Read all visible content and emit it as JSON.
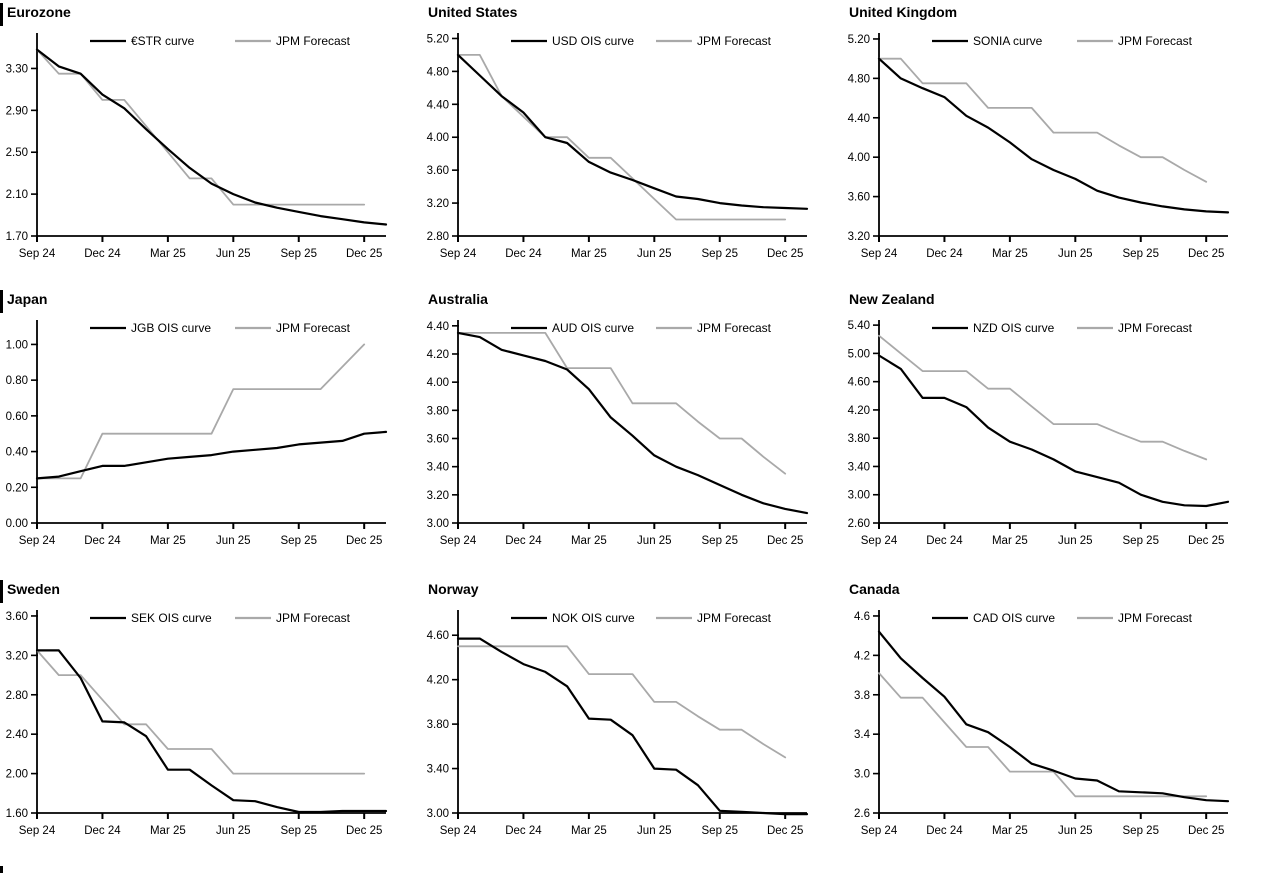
{
  "page": {
    "background": "#ffffff"
  },
  "colors": {
    "curve": "#000000",
    "forecast": "#a9a9a9",
    "axis": "#000000",
    "section_bar": "#000000"
  },
  "x_ticks": [
    "Sep 24",
    "Dec 24",
    "Mar 25",
    "Jun 25",
    "Sep 25",
    "Dec 25"
  ],
  "chart_data": [
    {
      "type": "line",
      "title": "Eurozone",
      "left_bar": true,
      "ylim": [
        1.7,
        3.61
      ],
      "months_span": 16,
      "y_ticks": [
        "3.30",
        "2.90",
        "2.50",
        "2.10",
        "1.70"
      ],
      "x_ticks": [
        "Sep 24",
        "Dec 24",
        "Mar 25",
        "Jun 25",
        "Sep 25",
        "Dec 25"
      ],
      "x_tick_months": [
        0,
        3,
        6,
        9,
        12,
        15
      ],
      "legend": [
        {
          "label": "€STR curve",
          "color_key": "curve"
        },
        {
          "label": "JPM Forecast",
          "color_key": "forecast"
        }
      ],
      "series": [
        {
          "name": "€STR curve",
          "role": "market",
          "values": [
            3.48,
            3.32,
            3.25,
            3.05,
            2.92,
            2.72,
            2.53,
            2.35,
            2.2,
            2.1,
            2.02,
            1.97,
            1.93,
            1.89,
            1.86,
            1.83,
            1.81
          ]
        },
        {
          "name": "JPM Forecast",
          "role": "forecast",
          "values": [
            3.48,
            3.25,
            3.25,
            3.0,
            3.0,
            2.75,
            2.5,
            2.25,
            2.25,
            2.0,
            2.0,
            2.0,
            2.0,
            2.0,
            2.0,
            2.0
          ]
        }
      ]
    },
    {
      "type": "line",
      "title": "United States",
      "left_bar": false,
      "ylim": [
        2.8,
        5.23
      ],
      "months_span": 16,
      "y_ticks": [
        "5.20",
        "4.80",
        "4.40",
        "4.00",
        "3.60",
        "3.20",
        "2.80"
      ],
      "x_ticks": [
        "Sep 24",
        "Dec 24",
        "Mar 25",
        "Jun 25",
        "Sep 25",
        "Dec 25"
      ],
      "x_tick_months": [
        0,
        3,
        6,
        9,
        12,
        15
      ],
      "legend": [
        {
          "label": "USD OIS curve",
          "color_key": "curve"
        },
        {
          "label": "JPM Forecast",
          "color_key": "forecast"
        }
      ],
      "series": [
        {
          "name": "USD OIS curve",
          "role": "market",
          "values": [
            5.0,
            4.75,
            4.5,
            4.3,
            4.0,
            3.93,
            3.7,
            3.57,
            3.48,
            3.38,
            3.28,
            3.25,
            3.2,
            3.17,
            3.15,
            3.14,
            3.13
          ]
        },
        {
          "name": "JPM Forecast",
          "role": "forecast",
          "values": [
            5.0,
            5.0,
            4.5,
            4.25,
            4.0,
            4.0,
            3.75,
            3.75,
            3.5,
            3.25,
            3.0,
            3.0,
            3.0,
            3.0,
            3.0,
            3.0
          ]
        }
      ]
    },
    {
      "type": "line",
      "title": "United Kingdom",
      "left_bar": false,
      "ylim": [
        3.2,
        5.23
      ],
      "months_span": 16,
      "y_ticks": [
        "5.20",
        "4.80",
        "4.40",
        "4.00",
        "3.60",
        "3.20"
      ],
      "x_ticks": [
        "Sep 24",
        "Dec 24",
        "Mar 25",
        "Jun 25",
        "Sep 25",
        "Dec 25"
      ],
      "x_tick_months": [
        0,
        3,
        6,
        9,
        12,
        15
      ],
      "legend": [
        {
          "label": "SONIA curve",
          "color_key": "curve"
        },
        {
          "label": "JPM Forecast",
          "color_key": "forecast"
        }
      ],
      "series": [
        {
          "name": "SONIA curve",
          "role": "market",
          "values": [
            5.0,
            4.8,
            4.7,
            4.61,
            4.42,
            4.3,
            4.15,
            3.98,
            3.87,
            3.78,
            3.66,
            3.59,
            3.54,
            3.5,
            3.47,
            3.45,
            3.44
          ]
        },
        {
          "name": "JPM Forecast",
          "role": "forecast",
          "values": [
            5.0,
            5.0,
            4.75,
            4.75,
            4.75,
            4.5,
            4.5,
            4.5,
            4.25,
            4.25,
            4.25,
            4.12,
            4.0,
            4.0,
            3.87,
            3.75
          ]
        }
      ]
    },
    {
      "type": "line",
      "title": "Japan",
      "left_bar": true,
      "ylim": [
        0.0,
        1.12
      ],
      "months_span": 16,
      "y_ticks": [
        "1.00",
        "0.80",
        "0.60",
        "0.40",
        "0.20",
        "0.00"
      ],
      "x_ticks": [
        "Sep 24",
        "Dec 24",
        "Mar 25",
        "Jun 25",
        "Sep 25",
        "Dec 25"
      ],
      "x_tick_months": [
        0,
        3,
        6,
        9,
        12,
        15
      ],
      "legend": [
        {
          "label": "JGB OIS curve",
          "color_key": "curve"
        },
        {
          "label": "JPM Forecast",
          "color_key": "forecast"
        }
      ],
      "series": [
        {
          "name": "JGB OIS curve",
          "role": "market",
          "values": [
            0.25,
            0.26,
            0.29,
            0.32,
            0.32,
            0.34,
            0.36,
            0.37,
            0.38,
            0.4,
            0.41,
            0.42,
            0.44,
            0.45,
            0.46,
            0.5,
            0.51
          ]
        },
        {
          "name": "JPM Forecast",
          "role": "forecast",
          "values": [
            0.25,
            0.25,
            0.25,
            0.5,
            0.5,
            0.5,
            0.5,
            0.5,
            0.5,
            0.75,
            0.75,
            0.75,
            0.75,
            0.75,
            0.875,
            1.0
          ]
        }
      ]
    },
    {
      "type": "line",
      "title": "Australia",
      "left_bar": false,
      "ylim": [
        3.0,
        4.42
      ],
      "months_span": 16,
      "y_ticks": [
        "4.40",
        "4.20",
        "4.00",
        "3.80",
        "3.60",
        "3.40",
        "3.20",
        "3.00"
      ],
      "x_ticks": [
        "Sep 24",
        "Dec 24",
        "Mar 25",
        "Jun 25",
        "Sep 25",
        "Dec 25"
      ],
      "x_tick_months": [
        0,
        3,
        6,
        9,
        12,
        15
      ],
      "legend": [
        {
          "label": "AUD OIS curve",
          "color_key": "curve"
        },
        {
          "label": "JPM Forecast",
          "color_key": "forecast"
        }
      ],
      "series": [
        {
          "name": "AUD OIS curve",
          "role": "market",
          "values": [
            4.35,
            4.32,
            4.23,
            4.19,
            4.15,
            4.09,
            3.95,
            3.75,
            3.62,
            3.48,
            3.4,
            3.34,
            3.27,
            3.2,
            3.14,
            3.1,
            3.07
          ]
        },
        {
          "name": "JPM Forecast",
          "role": "forecast",
          "values": [
            4.35,
            4.35,
            4.35,
            4.35,
            4.35,
            4.1,
            4.1,
            4.1,
            3.85,
            3.85,
            3.85,
            3.72,
            3.6,
            3.6,
            3.47,
            3.35
          ]
        }
      ]
    },
    {
      "type": "line",
      "title": "New Zealand",
      "left_bar": false,
      "ylim": [
        2.6,
        5.43
      ],
      "months_span": 16,
      "y_ticks": [
        "5.40",
        "5.00",
        "4.60",
        "4.20",
        "3.80",
        "3.40",
        "3.00",
        "2.60"
      ],
      "x_ticks": [
        "Sep 24",
        "Dec 24",
        "Mar 25",
        "Jun 25",
        "Sep 25",
        "Dec 25"
      ],
      "x_tick_months": [
        0,
        3,
        6,
        9,
        12,
        15
      ],
      "legend": [
        {
          "label": "NZD OIS curve",
          "color_key": "curve"
        },
        {
          "label": "JPM Forecast",
          "color_key": "forecast"
        }
      ],
      "series": [
        {
          "name": "NZD OIS curve",
          "role": "market",
          "values": [
            4.97,
            4.78,
            4.37,
            4.37,
            4.24,
            3.95,
            3.75,
            3.64,
            3.5,
            3.33,
            3.25,
            3.17,
            3.0,
            2.9,
            2.85,
            2.84,
            2.9
          ]
        },
        {
          "name": "JPM Forecast",
          "role": "forecast",
          "values": [
            5.25,
            5.0,
            4.75,
            4.75,
            4.75,
            4.5,
            4.5,
            4.25,
            4.0,
            4.0,
            4.0,
            3.87,
            3.75,
            3.75,
            3.62,
            3.5
          ]
        }
      ]
    },
    {
      "type": "line",
      "title": "Sweden",
      "left_bar": true,
      "ylim": [
        1.6,
        3.63
      ],
      "months_span": 16,
      "y_ticks": [
        "3.60",
        "3.20",
        "2.80",
        "2.40",
        "2.00",
        "1.60"
      ],
      "x_ticks": [
        "Sep 24",
        "Dec 24",
        "Mar 25",
        "Jun 25",
        "Sep 25",
        "Dec 25"
      ],
      "x_tick_months": [
        0,
        3,
        6,
        9,
        12,
        15
      ],
      "legend": [
        {
          "label": "SEK OIS curve",
          "color_key": "curve"
        },
        {
          "label": "JPM Forecast",
          "color_key": "forecast"
        }
      ],
      "series": [
        {
          "name": "SEK OIS curve",
          "role": "market",
          "values": [
            3.25,
            3.25,
            2.97,
            2.53,
            2.52,
            2.38,
            2.04,
            2.04,
            1.88,
            1.73,
            1.72,
            1.66,
            1.61,
            1.61,
            1.62,
            1.62,
            1.62
          ]
        },
        {
          "name": "JPM Forecast",
          "role": "forecast",
          "values": [
            3.25,
            3.0,
            3.0,
            2.75,
            2.5,
            2.5,
            2.25,
            2.25,
            2.25,
            2.0,
            2.0,
            2.0,
            2.0,
            2.0,
            2.0,
            2.0
          ]
        }
      ]
    },
    {
      "type": "line",
      "title": "Norway",
      "left_bar": false,
      "ylim": [
        3.0,
        4.8
      ],
      "months_span": 16,
      "y_ticks": [
        "4.60",
        "4.20",
        "3.80",
        "3.40",
        "3.00"
      ],
      "x_ticks": [
        "Sep 24",
        "Dec 24",
        "Mar 25",
        "Jun 25",
        "Sep 25",
        "Dec 25"
      ],
      "x_tick_months": [
        0,
        3,
        6,
        9,
        12,
        15
      ],
      "legend": [
        {
          "label": "NOK OIS curve",
          "color_key": "curve"
        },
        {
          "label": "JPM Forecast",
          "color_key": "forecast"
        }
      ],
      "series": [
        {
          "name": "NOK OIS curve",
          "role": "market",
          "values": [
            4.57,
            4.57,
            4.45,
            4.34,
            4.27,
            4.14,
            3.85,
            3.84,
            3.7,
            3.4,
            3.39,
            3.25,
            3.02,
            3.01,
            3.0,
            2.99,
            2.99
          ]
        },
        {
          "name": "JPM Forecast",
          "role": "forecast",
          "values": [
            4.5,
            4.5,
            4.5,
            4.5,
            4.5,
            4.5,
            4.25,
            4.25,
            4.25,
            4.0,
            4.0,
            3.87,
            3.75,
            3.75,
            3.62,
            3.5
          ]
        }
      ]
    },
    {
      "type": "line",
      "title": "Canada",
      "left_bar": false,
      "ylim": [
        2.6,
        4.63
      ],
      "months_span": 16,
      "y_ticks": [
        "4.6",
        "4.2",
        "3.8",
        "3.4",
        "3.0",
        "2.6"
      ],
      "x_ticks": [
        "Sep 24",
        "Dec 24",
        "Mar 25",
        "Jun 25",
        "Sep 25",
        "Dec 25"
      ],
      "x_tick_months": [
        0,
        3,
        6,
        9,
        12,
        15
      ],
      "legend": [
        {
          "label": "CAD OIS curve",
          "color_key": "curve"
        },
        {
          "label": "JPM Forecast",
          "color_key": "forecast"
        }
      ],
      "series": [
        {
          "name": "CAD OIS curve",
          "role": "market",
          "values": [
            4.44,
            4.17,
            3.97,
            3.78,
            3.5,
            3.42,
            3.27,
            3.1,
            3.03,
            2.95,
            2.93,
            2.82,
            2.81,
            2.8,
            2.76,
            2.73,
            2.72
          ]
        },
        {
          "name": "JPM Forecast",
          "role": "forecast",
          "values": [
            4.02,
            3.77,
            3.77,
            3.52,
            3.27,
            3.27,
            3.02,
            3.02,
            3.02,
            2.77,
            2.77,
            2.77,
            2.77,
            2.77,
            2.77,
            2.77
          ]
        }
      ]
    }
  ]
}
